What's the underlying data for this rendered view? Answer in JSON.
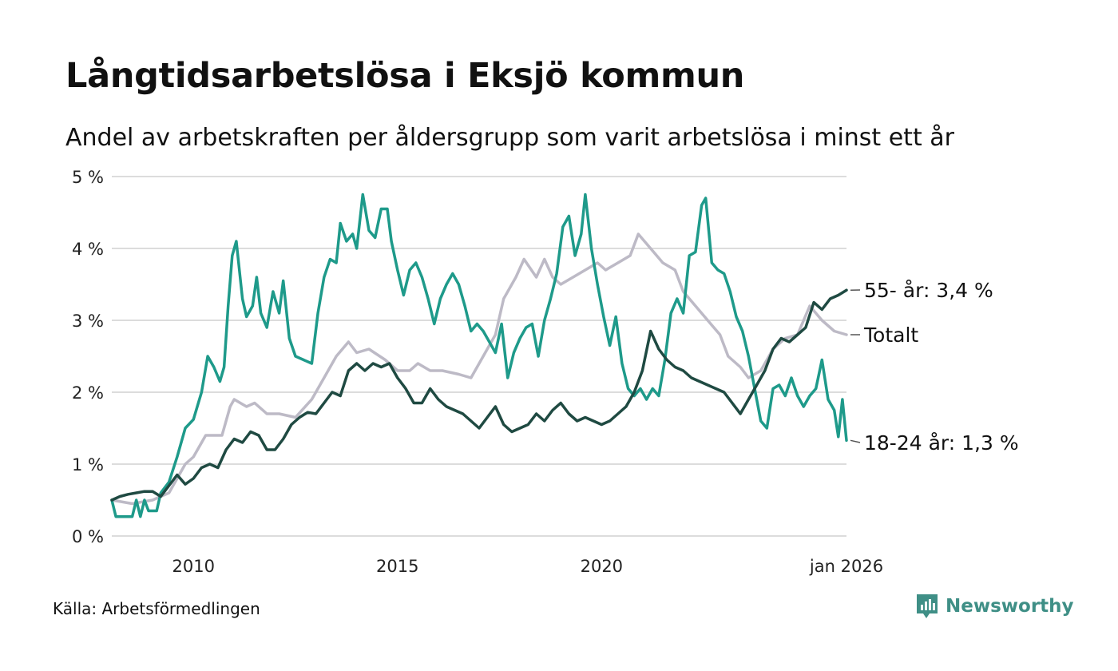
{
  "header": {
    "title": "Långtidsarbetslösa i Eksjö kommun",
    "subtitle": "Andel av arbetskraften per åldersgrupp som varit arbetslösa i minst ett år"
  },
  "footer": {
    "source": "Källa: Arbetsförmedlingen",
    "brand": "Newsworthy",
    "brand_icon": "newsworthy-logo-icon"
  },
  "colors": {
    "background": "#ffffff",
    "grid": "#dcdcdc",
    "series_55": "#1f4a42",
    "series_total": "#bdbac6",
    "series_18_24": "#1e9a8a",
    "brand": "#3f8f86"
  },
  "chart_data": {
    "type": "line",
    "title": "Långtidsarbetslösa i Eksjö kommun",
    "subtitle": "Andel av arbetskraften per åldersgrupp som varit arbetslösa i minst ett år",
    "xlabel": "",
    "ylabel": "",
    "ylim": [
      0,
      5
    ],
    "y_ticks": [
      0,
      1,
      2,
      3,
      4,
      5
    ],
    "y_tick_labels": [
      "0 %",
      "1 %",
      "2 %",
      "3 %",
      "4 %",
      "5 %"
    ],
    "xlim": [
      2008.0,
      2026.0
    ],
    "x_ticks": [
      2010,
      2015,
      2020,
      2026.0
    ],
    "x_tick_labels": [
      "2010",
      "2015",
      "2020",
      "jan 2026"
    ],
    "grid": "horizontal",
    "series": [
      {
        "name": "Totalt",
        "end_label": "Totalt",
        "color": "#bdbac6",
        "points": [
          [
            2008.0,
            0.5
          ],
          [
            2008.5,
            0.45
          ],
          [
            2009.0,
            0.5
          ],
          [
            2009.4,
            0.6
          ],
          [
            2009.8,
            1.0
          ],
          [
            2010.0,
            1.1
          ],
          [
            2010.3,
            1.4
          ],
          [
            2010.7,
            1.4
          ],
          [
            2010.9,
            1.8
          ],
          [
            2011.0,
            1.9
          ],
          [
            2011.3,
            1.8
          ],
          [
            2011.5,
            1.85
          ],
          [
            2011.8,
            1.7
          ],
          [
            2012.1,
            1.7
          ],
          [
            2012.5,
            1.65
          ],
          [
            2012.9,
            1.9
          ],
          [
            2013.2,
            2.2
          ],
          [
            2013.5,
            2.5
          ],
          [
            2013.8,
            2.7
          ],
          [
            2014.0,
            2.55
          ],
          [
            2014.3,
            2.6
          ],
          [
            2014.7,
            2.45
          ],
          [
            2015.0,
            2.3
          ],
          [
            2015.3,
            2.3
          ],
          [
            2015.5,
            2.4
          ],
          [
            2015.8,
            2.3
          ],
          [
            2016.1,
            2.3
          ],
          [
            2016.5,
            2.25
          ],
          [
            2016.8,
            2.2
          ],
          [
            2017.1,
            2.5
          ],
          [
            2017.4,
            2.8
          ],
          [
            2017.6,
            3.3
          ],
          [
            2017.9,
            3.6
          ],
          [
            2018.1,
            3.85
          ],
          [
            2018.4,
            3.6
          ],
          [
            2018.6,
            3.85
          ],
          [
            2018.8,
            3.6
          ],
          [
            2019.0,
            3.5
          ],
          [
            2019.3,
            3.6
          ],
          [
            2019.6,
            3.7
          ],
          [
            2019.9,
            3.8
          ],
          [
            2020.1,
            3.7
          ],
          [
            2020.4,
            3.8
          ],
          [
            2020.7,
            3.9
          ],
          [
            2020.9,
            4.2
          ],
          [
            2021.2,
            4.0
          ],
          [
            2021.5,
            3.8
          ],
          [
            2021.8,
            3.7
          ],
          [
            2022.0,
            3.4
          ],
          [
            2022.3,
            3.2
          ],
          [
            2022.6,
            3.0
          ],
          [
            2022.9,
            2.8
          ],
          [
            2023.1,
            2.5
          ],
          [
            2023.4,
            2.35
          ],
          [
            2023.6,
            2.2
          ],
          [
            2023.9,
            2.3
          ],
          [
            2024.2,
            2.6
          ],
          [
            2024.5,
            2.75
          ],
          [
            2024.8,
            2.8
          ],
          [
            2025.1,
            3.2
          ],
          [
            2025.4,
            3.0
          ],
          [
            2025.7,
            2.85
          ],
          [
            2026.0,
            2.8
          ]
        ]
      },
      {
        "name": "18-24 år",
        "end_label": "18-24 år: 1,3 %",
        "color": "#1e9a8a",
        "points": [
          [
            2008.0,
            0.5
          ],
          [
            2008.1,
            0.27
          ],
          [
            2008.5,
            0.27
          ],
          [
            2008.6,
            0.5
          ],
          [
            2008.7,
            0.27
          ],
          [
            2008.8,
            0.5
          ],
          [
            2008.9,
            0.35
          ],
          [
            2009.1,
            0.35
          ],
          [
            2009.2,
            0.6
          ],
          [
            2009.4,
            0.75
          ],
          [
            2009.6,
            1.1
          ],
          [
            2009.8,
            1.5
          ],
          [
            2010.0,
            1.62
          ],
          [
            2010.2,
            2.0
          ],
          [
            2010.35,
            2.5
          ],
          [
            2010.5,
            2.35
          ],
          [
            2010.65,
            2.15
          ],
          [
            2010.75,
            2.35
          ],
          [
            2010.85,
            3.2
          ],
          [
            2010.95,
            3.9
          ],
          [
            2011.05,
            4.1
          ],
          [
            2011.2,
            3.3
          ],
          [
            2011.3,
            3.05
          ],
          [
            2011.45,
            3.2
          ],
          [
            2011.55,
            3.6
          ],
          [
            2011.65,
            3.1
          ],
          [
            2011.8,
            2.9
          ],
          [
            2011.95,
            3.4
          ],
          [
            2012.1,
            3.1
          ],
          [
            2012.2,
            3.55
          ],
          [
            2012.35,
            2.75
          ],
          [
            2012.5,
            2.5
          ],
          [
            2012.7,
            2.45
          ],
          [
            2012.9,
            2.4
          ],
          [
            2013.05,
            3.1
          ],
          [
            2013.2,
            3.6
          ],
          [
            2013.35,
            3.85
          ],
          [
            2013.5,
            3.8
          ],
          [
            2013.6,
            4.35
          ],
          [
            2013.75,
            4.1
          ],
          [
            2013.9,
            4.2
          ],
          [
            2014.0,
            4.0
          ],
          [
            2014.15,
            4.75
          ],
          [
            2014.3,
            4.25
          ],
          [
            2014.45,
            4.15
          ],
          [
            2014.6,
            4.55
          ],
          [
            2014.75,
            4.55
          ],
          [
            2014.85,
            4.1
          ],
          [
            2015.0,
            3.7
          ],
          [
            2015.15,
            3.35
          ],
          [
            2015.3,
            3.7
          ],
          [
            2015.45,
            3.8
          ],
          [
            2015.6,
            3.6
          ],
          [
            2015.75,
            3.3
          ],
          [
            2015.9,
            2.95
          ],
          [
            2016.05,
            3.3
          ],
          [
            2016.2,
            3.5
          ],
          [
            2016.35,
            3.65
          ],
          [
            2016.5,
            3.5
          ],
          [
            2016.65,
            3.2
          ],
          [
            2016.8,
            2.85
          ],
          [
            2016.95,
            2.95
          ],
          [
            2017.1,
            2.85
          ],
          [
            2017.25,
            2.7
          ],
          [
            2017.4,
            2.55
          ],
          [
            2017.55,
            2.95
          ],
          [
            2017.7,
            2.2
          ],
          [
            2017.85,
            2.55
          ],
          [
            2018.0,
            2.75
          ],
          [
            2018.15,
            2.9
          ],
          [
            2018.3,
            2.95
          ],
          [
            2018.45,
            2.5
          ],
          [
            2018.6,
            3.0
          ],
          [
            2018.75,
            3.3
          ],
          [
            2018.9,
            3.65
          ],
          [
            2019.05,
            4.3
          ],
          [
            2019.2,
            4.45
          ],
          [
            2019.35,
            3.9
          ],
          [
            2019.5,
            4.2
          ],
          [
            2019.6,
            4.75
          ],
          [
            2019.75,
            4.0
          ],
          [
            2019.9,
            3.5
          ],
          [
            2020.05,
            3.05
          ],
          [
            2020.2,
            2.65
          ],
          [
            2020.35,
            3.05
          ],
          [
            2020.5,
            2.4
          ],
          [
            2020.65,
            2.05
          ],
          [
            2020.8,
            1.95
          ],
          [
            2020.95,
            2.05
          ],
          [
            2021.1,
            1.9
          ],
          [
            2021.25,
            2.05
          ],
          [
            2021.4,
            1.95
          ],
          [
            2021.55,
            2.45
          ],
          [
            2021.7,
            3.1
          ],
          [
            2021.85,
            3.3
          ],
          [
            2022.0,
            3.1
          ],
          [
            2022.15,
            3.9
          ],
          [
            2022.3,
            3.95
          ],
          [
            2022.45,
            4.6
          ],
          [
            2022.55,
            4.7
          ],
          [
            2022.7,
            3.8
          ],
          [
            2022.85,
            3.7
          ],
          [
            2023.0,
            3.65
          ],
          [
            2023.15,
            3.4
          ],
          [
            2023.3,
            3.05
          ],
          [
            2023.45,
            2.85
          ],
          [
            2023.6,
            2.5
          ],
          [
            2023.75,
            2.05
          ],
          [
            2023.9,
            1.6
          ],
          [
            2024.05,
            1.5
          ],
          [
            2024.2,
            2.05
          ],
          [
            2024.35,
            2.1
          ],
          [
            2024.5,
            1.95
          ],
          [
            2024.65,
            2.2
          ],
          [
            2024.8,
            1.95
          ],
          [
            2024.95,
            1.8
          ],
          [
            2025.1,
            1.95
          ],
          [
            2025.25,
            2.05
          ],
          [
            2025.4,
            2.45
          ],
          [
            2025.55,
            1.9
          ],
          [
            2025.7,
            1.75
          ],
          [
            2025.8,
            1.38
          ],
          [
            2025.9,
            1.9
          ],
          [
            2026.0,
            1.33
          ]
        ]
      },
      {
        "name": "55- år",
        "end_label": "55- år: 3,4 %",
        "color": "#1f4a42",
        "points": [
          [
            2008.0,
            0.5
          ],
          [
            2008.2,
            0.55
          ],
          [
            2008.4,
            0.58
          ],
          [
            2008.6,
            0.6
          ],
          [
            2008.8,
            0.62
          ],
          [
            2009.0,
            0.62
          ],
          [
            2009.2,
            0.55
          ],
          [
            2009.4,
            0.7
          ],
          [
            2009.6,
            0.85
          ],
          [
            2009.8,
            0.72
          ],
          [
            2010.0,
            0.8
          ],
          [
            2010.2,
            0.95
          ],
          [
            2010.4,
            1.0
          ],
          [
            2010.6,
            0.95
          ],
          [
            2010.8,
            1.2
          ],
          [
            2011.0,
            1.35
          ],
          [
            2011.2,
            1.3
          ],
          [
            2011.4,
            1.45
          ],
          [
            2011.6,
            1.4
          ],
          [
            2011.8,
            1.2
          ],
          [
            2012.0,
            1.2
          ],
          [
            2012.2,
            1.35
          ],
          [
            2012.4,
            1.55
          ],
          [
            2012.6,
            1.65
          ],
          [
            2012.8,
            1.72
          ],
          [
            2013.0,
            1.7
          ],
          [
            2013.2,
            1.85
          ],
          [
            2013.4,
            2.0
          ],
          [
            2013.6,
            1.95
          ],
          [
            2013.8,
            2.3
          ],
          [
            2014.0,
            2.4
          ],
          [
            2014.2,
            2.3
          ],
          [
            2014.4,
            2.4
          ],
          [
            2014.6,
            2.35
          ],
          [
            2014.8,
            2.4
          ],
          [
            2015.0,
            2.2
          ],
          [
            2015.2,
            2.05
          ],
          [
            2015.4,
            1.85
          ],
          [
            2015.6,
            1.85
          ],
          [
            2015.8,
            2.05
          ],
          [
            2016.0,
            1.9
          ],
          [
            2016.2,
            1.8
          ],
          [
            2016.4,
            1.75
          ],
          [
            2016.6,
            1.7
          ],
          [
            2016.8,
            1.6
          ],
          [
            2017.0,
            1.5
          ],
          [
            2017.2,
            1.65
          ],
          [
            2017.4,
            1.8
          ],
          [
            2017.6,
            1.55
          ],
          [
            2017.8,
            1.45
          ],
          [
            2018.0,
            1.5
          ],
          [
            2018.2,
            1.55
          ],
          [
            2018.4,
            1.7
          ],
          [
            2018.6,
            1.6
          ],
          [
            2018.8,
            1.75
          ],
          [
            2019.0,
            1.85
          ],
          [
            2019.2,
            1.7
          ],
          [
            2019.4,
            1.6
          ],
          [
            2019.6,
            1.65
          ],
          [
            2019.8,
            1.6
          ],
          [
            2020.0,
            1.55
          ],
          [
            2020.2,
            1.6
          ],
          [
            2020.4,
            1.7
          ],
          [
            2020.6,
            1.8
          ],
          [
            2020.8,
            2.0
          ],
          [
            2021.0,
            2.3
          ],
          [
            2021.2,
            2.85
          ],
          [
            2021.4,
            2.6
          ],
          [
            2021.6,
            2.45
          ],
          [
            2021.8,
            2.35
          ],
          [
            2022.0,
            2.3
          ],
          [
            2022.2,
            2.2
          ],
          [
            2022.4,
            2.15
          ],
          [
            2022.6,
            2.1
          ],
          [
            2022.8,
            2.05
          ],
          [
            2023.0,
            2.0
          ],
          [
            2023.2,
            1.85
          ],
          [
            2023.4,
            1.7
          ],
          [
            2023.6,
            1.9
          ],
          [
            2023.8,
            2.1
          ],
          [
            2024.0,
            2.3
          ],
          [
            2024.2,
            2.6
          ],
          [
            2024.4,
            2.75
          ],
          [
            2024.6,
            2.7
          ],
          [
            2024.8,
            2.8
          ],
          [
            2025.0,
            2.9
          ],
          [
            2025.2,
            3.25
          ],
          [
            2025.4,
            3.15
          ],
          [
            2025.6,
            3.3
          ],
          [
            2025.8,
            3.35
          ],
          [
            2026.0,
            3.42
          ]
        ]
      }
    ]
  }
}
